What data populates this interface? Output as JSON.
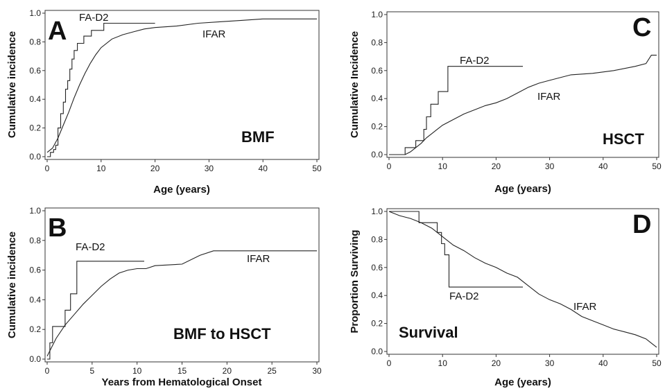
{
  "chart_data": [
    {
      "type": "line",
      "panel": "A",
      "title": "BMF",
      "xlabel": "Age (years)",
      "ylabel": "Cumulative incidence",
      "xlim": [
        0,
        50
      ],
      "ylim": [
        0,
        1.0
      ],
      "x_ticks": [
        0,
        10,
        20,
        30,
        40,
        50
      ],
      "y_ticks": [
        0.0,
        0.2,
        0.4,
        0.6,
        0.8,
        1.0
      ],
      "x_tick_labels": [
        "0",
        "10",
        "20",
        "30",
        "40",
        "50"
      ],
      "y_tick_labels": [
        "0.0",
        "0.2",
        "0.4",
        "0.6",
        "0.8",
        "1.0"
      ],
      "grid": false,
      "series": [
        {
          "name": "FA-D2",
          "step": true,
          "points": [
            [
              0,
              0.0
            ],
            [
              0.6,
              0.03
            ],
            [
              1.2,
              0.05
            ],
            [
              1.6,
              0.08
            ],
            [
              2.0,
              0.2
            ],
            [
              2.5,
              0.3
            ],
            [
              3.0,
              0.38
            ],
            [
              3.4,
              0.47
            ],
            [
              3.8,
              0.53
            ],
            [
              4.2,
              0.61
            ],
            [
              4.6,
              0.68
            ],
            [
              5.0,
              0.74
            ],
            [
              5.6,
              0.79
            ],
            [
              6.8,
              0.84
            ],
            [
              8.2,
              0.88
            ],
            [
              10.5,
              0.93
            ],
            [
              20.0,
              0.93
            ]
          ]
        },
        {
          "name": "IFAR",
          "step": false,
          "points": [
            [
              0,
              0.03
            ],
            [
              1,
              0.06
            ],
            [
              2,
              0.13
            ],
            [
              3,
              0.22
            ],
            [
              4,
              0.31
            ],
            [
              5,
              0.41
            ],
            [
              6,
              0.5
            ],
            [
              7,
              0.58
            ],
            [
              8,
              0.65
            ],
            [
              9,
              0.71
            ],
            [
              10,
              0.76
            ],
            [
              12,
              0.82
            ],
            [
              14,
              0.85
            ],
            [
              16,
              0.87
            ],
            [
              18,
              0.89
            ],
            [
              20,
              0.9
            ],
            [
              24,
              0.91
            ],
            [
              28,
              0.93
            ],
            [
              32,
              0.94
            ],
            [
              36,
              0.95
            ],
            [
              40,
              0.96
            ],
            [
              43,
              0.96
            ],
            [
              50,
              0.96
            ]
          ]
        }
      ]
    },
    {
      "type": "line",
      "panel": "B",
      "title": "BMF to HSCT",
      "xlabel": "Years from Hematological Onset",
      "ylabel": "Cumulative incidence",
      "xlim": [
        0,
        30
      ],
      "ylim": [
        0,
        1.0
      ],
      "x_ticks": [
        0,
        5,
        10,
        15,
        20,
        25,
        30
      ],
      "y_ticks": [
        0.0,
        0.2,
        0.4,
        0.6,
        0.8,
        1.0
      ],
      "x_tick_labels": [
        "0",
        "5",
        "10",
        "15",
        "20",
        "25",
        "30"
      ],
      "y_tick_labels": [
        "0.0",
        "0.2",
        "0.4",
        "0.6",
        "0.8",
        "1.0"
      ],
      "grid": false,
      "series": [
        {
          "name": "FA-D2",
          "step": true,
          "points": [
            [
              0,
              0.0
            ],
            [
              0.3,
              0.11
            ],
            [
              0.6,
              0.22
            ],
            [
              2.0,
              0.33
            ],
            [
              2.6,
              0.44
            ],
            [
              3.3,
              0.66
            ],
            [
              10.8,
              0.66
            ]
          ]
        },
        {
          "name": "IFAR",
          "step": false,
          "points": [
            [
              0,
              0.02
            ],
            [
              0.5,
              0.08
            ],
            [
              1,
              0.14
            ],
            [
              2,
              0.23
            ],
            [
              3,
              0.3
            ],
            [
              4,
              0.37
            ],
            [
              5,
              0.43
            ],
            [
              6,
              0.49
            ],
            [
              7,
              0.54
            ],
            [
              8,
              0.58
            ],
            [
              9,
              0.6
            ],
            [
              10,
              0.61
            ],
            [
              11,
              0.61
            ],
            [
              12,
              0.63
            ],
            [
              15,
              0.64
            ],
            [
              17,
              0.7
            ],
            [
              18.5,
              0.73
            ],
            [
              30,
              0.73
            ]
          ]
        }
      ]
    },
    {
      "type": "line",
      "panel": "C",
      "title": "HSCT",
      "xlabel": "Age (years)",
      "ylabel": "Cumulative Incidence",
      "xlim": [
        0,
        50
      ],
      "ylim": [
        0,
        1.0
      ],
      "x_ticks": [
        0,
        10,
        20,
        30,
        40,
        50
      ],
      "y_ticks": [
        0.0,
        0.2,
        0.4,
        0.6,
        0.8,
        1.0
      ],
      "x_tick_labels": [
        "0",
        "10",
        "20",
        "30",
        "40",
        "50"
      ],
      "y_tick_labels": [
        "0.0",
        "0.2",
        "0.4",
        "0.6",
        "0.8",
        "1.0"
      ],
      "grid": false,
      "series": [
        {
          "name": "FA-D2",
          "step": true,
          "points": [
            [
              0,
              0.0
            ],
            [
              3.0,
              0.05
            ],
            [
              5.0,
              0.1
            ],
            [
              6.5,
              0.18
            ],
            [
              7.0,
              0.27
            ],
            [
              7.8,
              0.36
            ],
            [
              9.2,
              0.45
            ],
            [
              11.0,
              0.63
            ],
            [
              25.0,
              0.63
            ]
          ]
        },
        {
          "name": "IFAR",
          "step": false,
          "points": [
            [
              0,
              0.0
            ],
            [
              3,
              0.0
            ],
            [
              4,
              0.02
            ],
            [
              5,
              0.05
            ],
            [
              6,
              0.08
            ],
            [
              7,
              0.12
            ],
            [
              8,
              0.15
            ],
            [
              9,
              0.18
            ],
            [
              10,
              0.21
            ],
            [
              12,
              0.25
            ],
            [
              14,
              0.29
            ],
            [
              16,
              0.32
            ],
            [
              18,
              0.35
            ],
            [
              20,
              0.37
            ],
            [
              22,
              0.4
            ],
            [
              24,
              0.44
            ],
            [
              26,
              0.48
            ],
            [
              28,
              0.51
            ],
            [
              30,
              0.53
            ],
            [
              32,
              0.55
            ],
            [
              34,
              0.57
            ],
            [
              38,
              0.58
            ],
            [
              42,
              0.6
            ],
            [
              46,
              0.63
            ],
            [
              48,
              0.65
            ],
            [
              49,
              0.71
            ],
            [
              50,
              0.71
            ]
          ]
        }
      ]
    },
    {
      "type": "line",
      "panel": "D",
      "title": "Survival",
      "xlabel": "Age (years)",
      "ylabel": "Proportion Surviving",
      "xlim": [
        0,
        50
      ],
      "ylim": [
        0,
        1.0
      ],
      "x_ticks": [
        0,
        10,
        20,
        30,
        40,
        50
      ],
      "y_ticks": [
        0.0,
        0.2,
        0.4,
        0.6,
        0.8,
        1.0
      ],
      "x_tick_labels": [
        "0",
        "10",
        "20",
        "30",
        "40",
        "50"
      ],
      "y_tick_labels": [
        "0.0",
        "0.2",
        "0.4",
        "0.6",
        "0.8",
        "1.0"
      ],
      "grid": false,
      "series": [
        {
          "name": "FA-D2",
          "step": true,
          "points": [
            [
              0,
              1.0
            ],
            [
              5.6,
              0.92
            ],
            [
              9.0,
              0.85
            ],
            [
              9.8,
              0.77
            ],
            [
              10.4,
              0.69
            ],
            [
              11.2,
              0.46
            ],
            [
              25.0,
              0.46
            ]
          ]
        },
        {
          "name": "IFAR",
          "step": false,
          "points": [
            [
              0,
              1.0
            ],
            [
              2,
              0.97
            ],
            [
              4,
              0.95
            ],
            [
              6,
              0.92
            ],
            [
              8,
              0.88
            ],
            [
              10,
              0.82
            ],
            [
              12,
              0.76
            ],
            [
              14,
              0.72
            ],
            [
              16,
              0.67
            ],
            [
              18,
              0.63
            ],
            [
              20,
              0.6
            ],
            [
              22,
              0.56
            ],
            [
              24,
              0.53
            ],
            [
              26,
              0.47
            ],
            [
              28,
              0.41
            ],
            [
              30,
              0.37
            ],
            [
              32,
              0.34
            ],
            [
              34,
              0.3
            ],
            [
              36,
              0.25
            ],
            [
              38,
              0.22
            ],
            [
              40,
              0.19
            ],
            [
              42,
              0.16
            ],
            [
              44,
              0.14
            ],
            [
              46,
              0.12
            ],
            [
              48,
              0.09
            ],
            [
              49,
              0.06
            ],
            [
              50,
              0.03
            ]
          ]
        }
      ]
    }
  ]
}
